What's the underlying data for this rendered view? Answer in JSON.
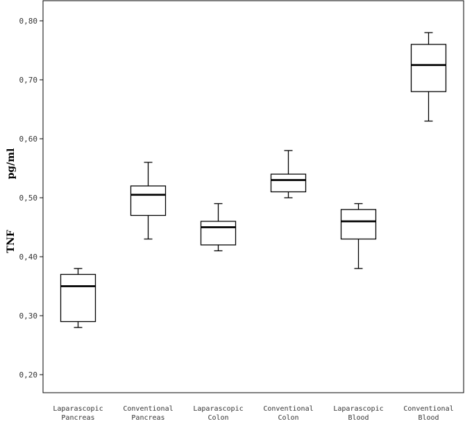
{
  "chart_data": {
    "type": "boxplot",
    "ylabel": "TNF          pg/ml",
    "ylabel_parts": [
      "TNF",
      "pg/ml"
    ],
    "xlabel": "",
    "ylim": [
      0.17,
      0.84
    ],
    "y_ticks": [
      0.2,
      0.3,
      0.4,
      0.5,
      0.6,
      0.7,
      0.8
    ],
    "y_tick_labels": [
      "0,20",
      "0,30",
      "0,40",
      "0,50",
      "0,60",
      "0,70",
      "0,80"
    ],
    "grid": false,
    "categories": [
      [
        "Laparascopic",
        "Pancreas"
      ],
      [
        "Conventional",
        "Pancreas"
      ],
      [
        "Laparascopic",
        "Colon"
      ],
      [
        "Conventional",
        "Colon"
      ],
      [
        "Laparascopic",
        "Blood"
      ],
      [
        "Conventional",
        "Blood"
      ]
    ],
    "boxes": [
      {
        "whisker_low": 0.28,
        "q1": 0.29,
        "median": 0.35,
        "q3": 0.37,
        "whisker_high": 0.38
      },
      {
        "whisker_low": 0.43,
        "q1": 0.47,
        "median": 0.505,
        "q3": 0.52,
        "whisker_high": 0.56
      },
      {
        "whisker_low": 0.41,
        "q1": 0.42,
        "median": 0.45,
        "q3": 0.46,
        "whisker_high": 0.49
      },
      {
        "whisker_low": 0.5,
        "q1": 0.51,
        "median": 0.53,
        "q3": 0.54,
        "whisker_high": 0.58
      },
      {
        "whisker_low": 0.38,
        "q1": 0.43,
        "median": 0.46,
        "q3": 0.48,
        "whisker_high": 0.49
      },
      {
        "whisker_low": 0.63,
        "q1": 0.68,
        "median": 0.725,
        "q3": 0.76,
        "whisker_high": 0.78
      }
    ],
    "colors": {
      "box_fill": "#ffffff",
      "stroke": "#000000",
      "text": "#333333"
    }
  }
}
